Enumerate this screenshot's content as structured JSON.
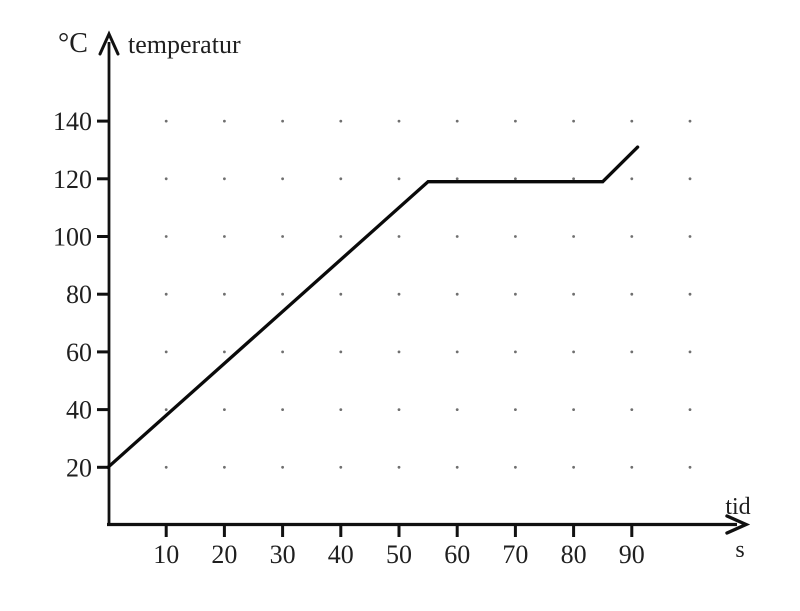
{
  "chart_data": {
    "type": "line",
    "title": "",
    "y_axis_label": "temperatur",
    "y_axis_unit": "°C",
    "x_axis_label": "tid",
    "x_axis_unit": "s",
    "x_ticks": [
      10,
      20,
      30,
      40,
      50,
      60,
      70,
      80,
      90
    ],
    "y_ticks": [
      20,
      40,
      60,
      80,
      100,
      120,
      140
    ],
    "xlim": [
      0,
      110
    ],
    "ylim": [
      0,
      168
    ],
    "grid": {
      "style": "dots",
      "x_positions": [
        10,
        20,
        30,
        40,
        50,
        60,
        70,
        80,
        90,
        100
      ],
      "y_positions": [
        20,
        40,
        60,
        80,
        100,
        120,
        140
      ]
    },
    "series": [
      {
        "name": "temperatur",
        "points": [
          [
            0,
            20
          ],
          [
            55,
            119
          ],
          [
            85,
            119
          ],
          [
            91,
            131
          ]
        ]
      }
    ],
    "colors": {
      "line": "#0a0a0a",
      "axis": "#111111",
      "text": "#1f1f1f",
      "grid_dot": "#6f6f6f",
      "background": "#ffffff"
    }
  }
}
